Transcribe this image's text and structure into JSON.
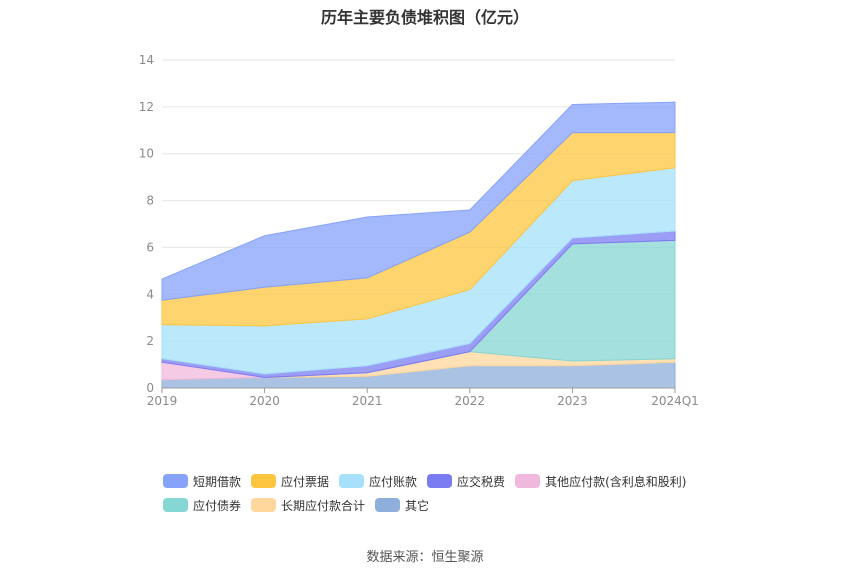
{
  "title": "历年主要负债堆积图（亿元）",
  "source": "数据来源：恒生聚源",
  "chart_data": {
    "type": "area",
    "stacked": true,
    "categories": [
      "2019",
      "2020",
      "2021",
      "2022",
      "2023",
      "2024Q1"
    ],
    "ylim": [
      0,
      14
    ],
    "yticks": [
      0,
      2,
      4,
      6,
      8,
      10,
      12,
      14
    ],
    "grid": true,
    "legend_position": "bottom",
    "series": [
      {
        "name": "其它",
        "color": "#8eaedb",
        "values": [
          0.35,
          0.45,
          0.5,
          0.95,
          0.95,
          1.1
        ]
      },
      {
        "name": "长期应付款合计",
        "color": "#ffd79c",
        "values": [
          0,
          0,
          0.15,
          0.6,
          0.2,
          0.15
        ]
      },
      {
        "name": "应付债券",
        "color": "#86d6d3",
        "values": [
          0,
          0,
          0,
          0,
          5.0,
          5.05
        ]
      },
      {
        "name": "其他应付款(含利息和股利)",
        "color": "#f0b8dc",
        "values": [
          0.75,
          0,
          0,
          0,
          0,
          0
        ]
      },
      {
        "name": "应交税费",
        "color": "#7b7cf2",
        "values": [
          0.15,
          0.15,
          0.3,
          0.35,
          0.25,
          0.4
        ]
      },
      {
        "name": "应付账款",
        "color": "#a6e0fb",
        "values": [
          1.45,
          2.05,
          2.0,
          2.3,
          2.45,
          2.7
        ]
      },
      {
        "name": "应付票据",
        "color": "#fec63f",
        "values": [
          1.05,
          1.65,
          1.75,
          2.45,
          2.05,
          1.5
        ]
      },
      {
        "name": "短期借款",
        "color": "#86a2f9",
        "values": [
          0.9,
          2.2,
          2.6,
          0.95,
          1.2,
          1.3
        ]
      }
    ],
    "legend_order": [
      "短期借款",
      "应付票据",
      "应付账款",
      "应交税费",
      "其他应付款(含利息和股利)",
      "应付债券",
      "长期应付款合计",
      "其它"
    ]
  }
}
